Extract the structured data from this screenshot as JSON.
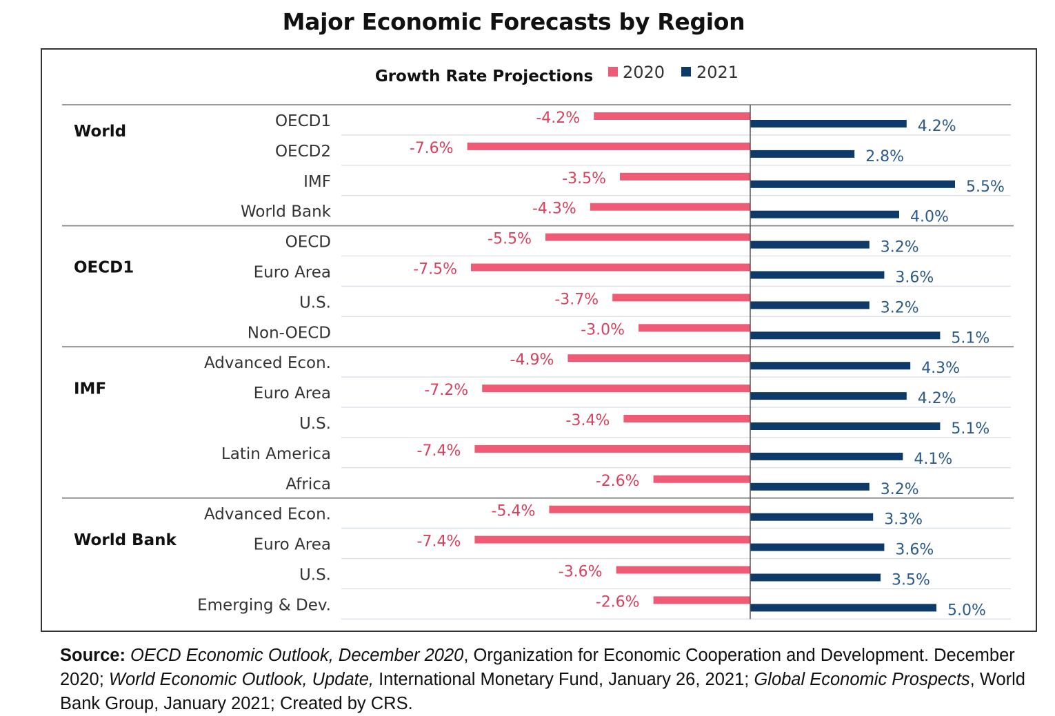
{
  "title": "Major Economic Forecasts by Region",
  "chart_data": {
    "type": "bar",
    "orientation": "horizontal",
    "title": "Major Economic Forecasts by Region",
    "subtitle": "Growth Rate Projections",
    "xlabel": "",
    "ylabel": "",
    "legend": {
      "placement": "top-center",
      "entries": [
        "2020",
        "2021"
      ]
    },
    "grid": true,
    "xlim": [
      -8,
      7
    ],
    "colors": {
      "2020": "#ef5b75",
      "2021": "#0d3a68"
    },
    "groups": [
      {
        "name": "World",
        "categories": [
          "OECD1",
          "OECD2",
          "IMF",
          "World Bank"
        ]
      },
      {
        "name": "OECD1",
        "categories": [
          "OECD",
          "Euro Area",
          "U.S.",
          "Non-OECD"
        ]
      },
      {
        "name": "IMF",
        "categories": [
          "Advanced Econ.",
          "Euro Area",
          "U.S.",
          "Latin America",
          "Africa"
        ]
      },
      {
        "name": "World Bank",
        "categories": [
          "Advanced Econ.",
          "Euro Area",
          "U.S.",
          "Emerging & Dev."
        ]
      }
    ],
    "categories": [
      "OECD1",
      "OECD2",
      "IMF",
      "World Bank",
      "OECD",
      "Euro Area",
      "U.S.",
      "Non-OECD",
      "Advanced Econ.",
      "Euro Area",
      "U.S.",
      "Latin America",
      "Africa",
      "Advanced Econ.",
      "Euro Area",
      "U.S.",
      "Emerging & Dev."
    ],
    "series": [
      {
        "name": "2020",
        "values": [
          -4.2,
          -7.6,
          -3.5,
          -4.3,
          -5.5,
          -7.5,
          -3.7,
          -3.0,
          -4.9,
          -7.2,
          -3.4,
          -7.4,
          -2.6,
          -5.4,
          -7.4,
          -3.6,
          -2.6
        ],
        "labels": [
          "-4.2%",
          "-7.6%",
          "-3.5%",
          "-4.3%",
          "-5.5%",
          "-7.5%",
          "-3.7%",
          "-3.0%",
          "-4.9%",
          "-7.2%",
          "-3.4%",
          "-7.4%",
          "-2.6%",
          "-5.4%",
          "-7.4%",
          "-3.6%",
          "-2.6%"
        ]
      },
      {
        "name": "2021",
        "values": [
          4.2,
          2.8,
          5.5,
          4.0,
          3.2,
          3.6,
          3.2,
          5.1,
          4.3,
          4.2,
          5.1,
          4.1,
          3.2,
          3.3,
          3.6,
          3.5,
          5.0
        ],
        "labels": [
          "4.2%",
          "2.8%",
          "5.5%",
          "4.0%",
          "3.2%",
          "3.6%",
          "3.2%",
          "5.1%",
          "4.3%",
          "4.2%",
          "5.1%",
          "4.1%",
          "3.2%",
          "3.3%",
          "3.6%",
          "3.5%",
          "5.0%"
        ]
      }
    ]
  },
  "source": {
    "label": "Source:",
    "parts": [
      {
        "text": "OECD Economic Outlook, December 2020",
        "italic": true
      },
      {
        "text": ", Organization for Economic Cooperation and Development. December 2020; ",
        "italic": false
      },
      {
        "text": "World Economic Outlook, Update,",
        "italic": true
      },
      {
        "text": " International Monetary Fund, January 26, 2021; ",
        "italic": false
      },
      {
        "text": "Global Economic Prospects",
        "italic": true
      },
      {
        "text": ", World Bank Group, January 2021; Created by CRS.",
        "italic": false
      }
    ]
  }
}
